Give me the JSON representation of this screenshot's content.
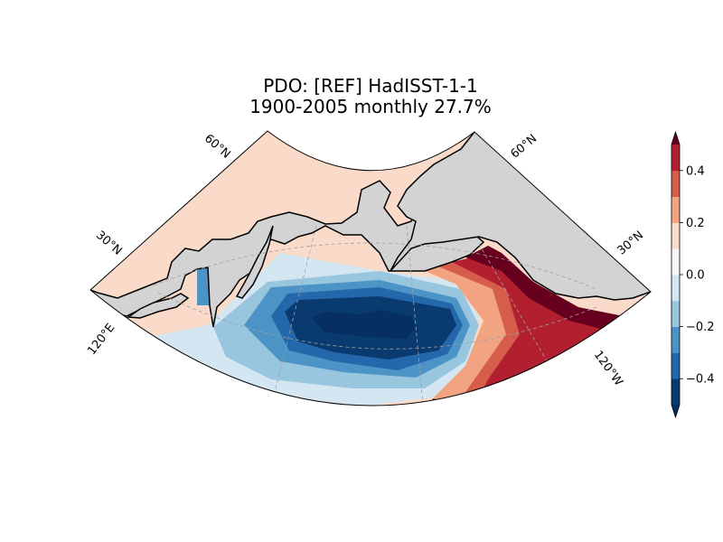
{
  "title": {
    "line1": "PDO: [REF] HadISST-1-1",
    "line2": "1900-2005 monthly 27.7%"
  },
  "map": {
    "projection": "lambert-conformal",
    "land_color": "#d3d3d3",
    "coastline_color": "#000000",
    "grid_style": "dashed-gray",
    "lat_labels": [
      "60°N",
      "30°N",
      "60°N",
      "30°N"
    ],
    "lon_labels": [
      "120°E",
      "120°W"
    ]
  },
  "colorbar": {
    "orientation": "vertical",
    "extend": "both",
    "range": [
      -0.5,
      0.5
    ],
    "levels": [
      -0.5,
      -0.4,
      -0.3,
      -0.2,
      -0.1,
      0.0,
      0.1,
      0.2,
      0.3,
      0.4,
      0.5
    ],
    "colors": [
      "#0a3b70",
      "#2467ab",
      "#4d94c6",
      "#98c6df",
      "#d4e6f1",
      "#f7f7f7",
      "#fadbc9",
      "#f2a482",
      "#d65d4b",
      "#b21f2e"
    ],
    "under_color": "#053061",
    "over_color": "#67001f",
    "ticks": [
      "−0.4",
      "−0.2",
      "0.0",
      "0.2",
      "0.4"
    ],
    "tick_values": [
      -0.4,
      -0.2,
      0.0,
      0.2,
      0.4
    ]
  }
}
